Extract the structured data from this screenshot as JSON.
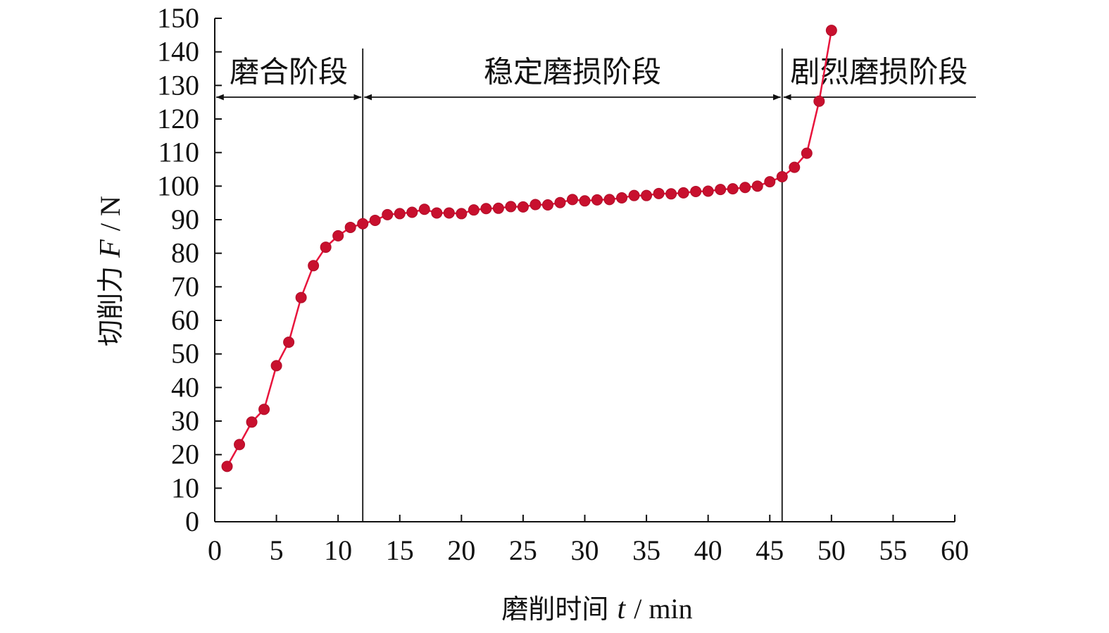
{
  "chart_data": {
    "type": "line",
    "title": "",
    "xlabel": {
      "text": "磨削时间",
      "symbol": "t",
      "unit": "/ min"
    },
    "ylabel": {
      "text": "切削力",
      "symbol": "F",
      "unit": "/ N"
    },
    "xlim": [
      0,
      60
    ],
    "ylim": [
      0,
      150
    ],
    "xticks": [
      0,
      5,
      10,
      15,
      20,
      25,
      30,
      35,
      40,
      45,
      50,
      55,
      60
    ],
    "yticks": [
      0,
      10,
      20,
      30,
      40,
      50,
      60,
      70,
      80,
      90,
      100,
      110,
      120,
      130,
      140,
      150
    ],
    "grid": false,
    "series": [
      {
        "color": "#e8143c",
        "marker_color": "#c8102e",
        "x": [
          1,
          2,
          3,
          4,
          5,
          6,
          7,
          8,
          9,
          10,
          11,
          12,
          13,
          14,
          15,
          16,
          17,
          18,
          19,
          20,
          21,
          22,
          23,
          24,
          25,
          26,
          27,
          28,
          29,
          30,
          31,
          32,
          33,
          34,
          35,
          36,
          37,
          38,
          39,
          40,
          41,
          42,
          43,
          44,
          45,
          46,
          47,
          48,
          49,
          50
        ],
        "y": [
          16.5,
          23,
          29.7,
          33.5,
          46.5,
          53.5,
          66.8,
          76.3,
          81.8,
          85.2,
          87.7,
          88.8,
          89.8,
          91.5,
          91.8,
          92.2,
          93.1,
          92.0,
          92.0,
          91.8,
          92.9,
          93.3,
          93.4,
          93.9,
          93.8,
          94.5,
          94.4,
          95.1,
          96.0,
          95.6,
          95.9,
          96.0,
          96.5,
          97.2,
          97.2,
          97.8,
          97.7,
          98.0,
          98.4,
          98.5,
          99.0,
          99.2,
          99.6,
          100.0,
          101.3,
          102.8,
          105.6,
          109.8,
          125.3,
          146.4
        ]
      }
    ],
    "stage_boundaries": [
      12,
      46
    ],
    "stages": [
      {
        "label": "磨合阶段",
        "x_start": 0,
        "x_end": 12
      },
      {
        "label": "稳定磨损阶段",
        "x_start": 12,
        "x_end": 46
      },
      {
        "label": "剧烈磨损阶段",
        "x_start": 46,
        "x_end": 60
      }
    ]
  }
}
